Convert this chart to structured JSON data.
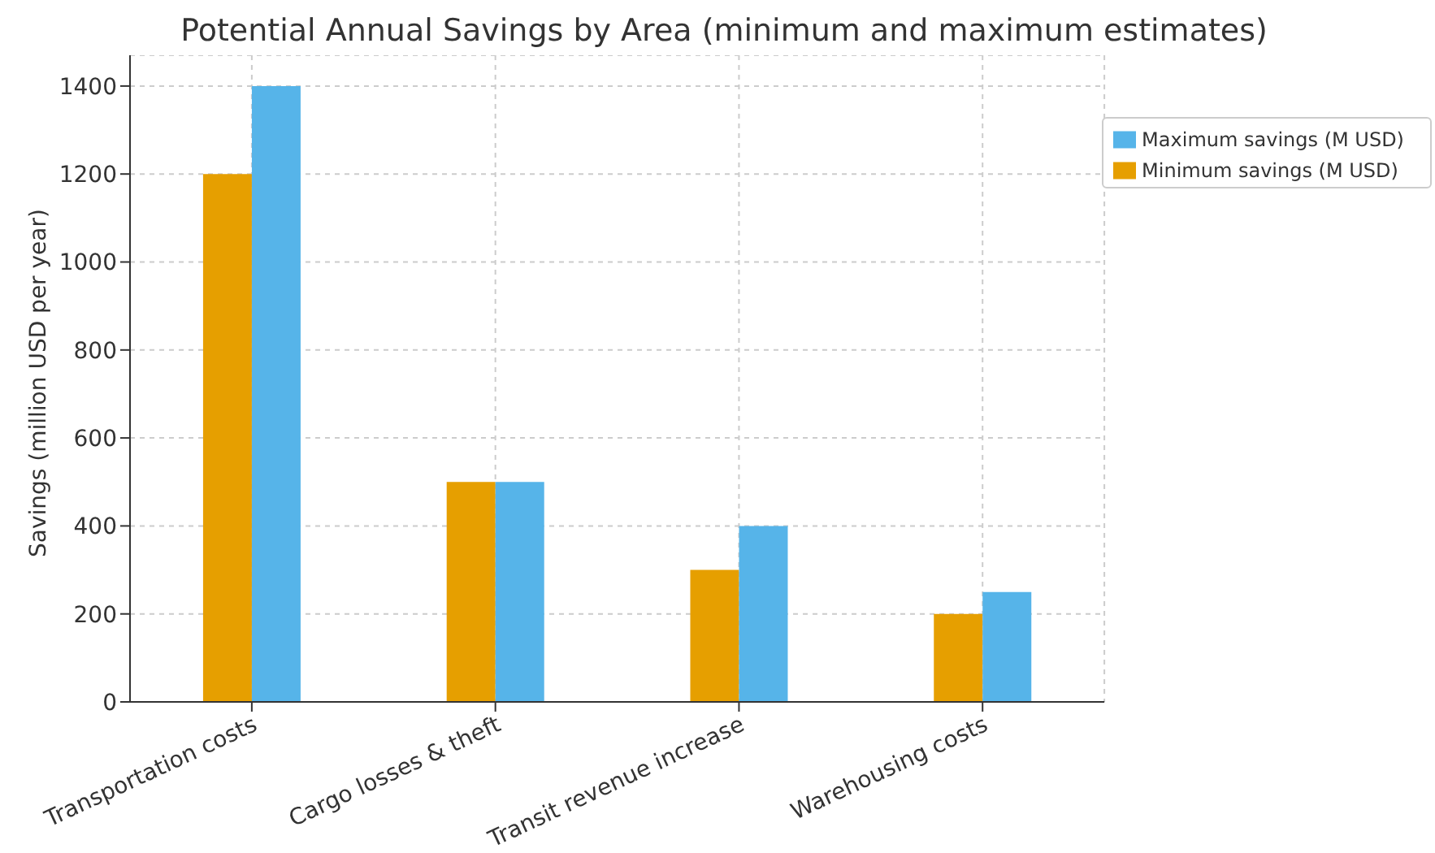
{
  "chart_data": {
    "type": "bar",
    "title": "Potential Annual Savings by Area (minimum and maximum estimates)",
    "ylabel": "Savings (million USD per year)",
    "categories": [
      "Transportation costs",
      "Cargo losses & theft",
      "Transit revenue increase",
      "Warehousing costs"
    ],
    "series": [
      {
        "name": "Minimum savings (M USD)",
        "color": "#e69f00",
        "values": [
          1200,
          500,
          300,
          200
        ]
      },
      {
        "name": "Maximum savings (M USD)",
        "color": "#56b4e9",
        "values": [
          1400,
          500,
          400,
          250
        ]
      }
    ],
    "ylim": [
      0,
      1470
    ],
    "yticks": [
      0,
      200,
      400,
      600,
      800,
      1000,
      1200,
      1400
    ],
    "grid": true,
    "legend": "top right"
  }
}
